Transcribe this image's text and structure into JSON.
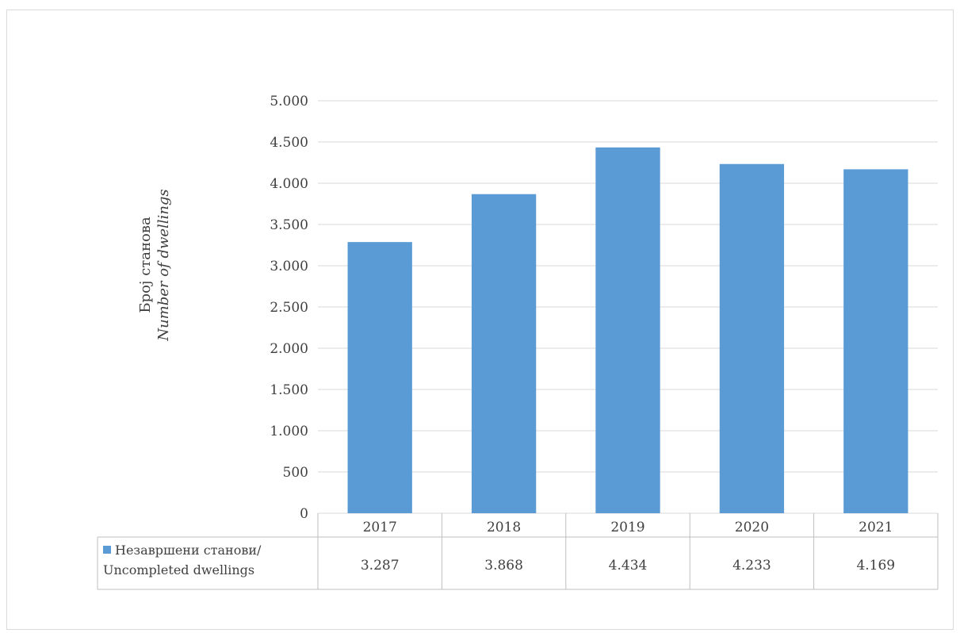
{
  "chart_data": {
    "type": "bar",
    "title": "",
    "ylabel": [
      "Број станова",
      "Number of dwellings"
    ],
    "xlabel": "",
    "categories": [
      "2017",
      "2018",
      "2019",
      "2020",
      "2021"
    ],
    "series": [
      {
        "name": "Незавршени станови/ Uncompleted dwellings",
        "name_lines": [
          "Незавршени станови/",
          "Uncompleted dwellings"
        ],
        "values": [
          3287,
          3868,
          4434,
          4233,
          4169
        ],
        "labels": [
          "3.287",
          "3.868",
          "4.434",
          "4.233",
          "4.169"
        ],
        "color": "#5b9bd5"
      }
    ],
    "ylim": [
      0,
      5000
    ],
    "yticks": [
      0,
      500,
      1000,
      1500,
      2000,
      2500,
      3000,
      3500,
      4000,
      4500,
      5000
    ],
    "ytick_labels": [
      "0",
      "500",
      "1.000",
      "1.500",
      "2.000",
      "2.500",
      "3.000",
      "3.500",
      "4.000",
      "4.500",
      "5.000"
    ],
    "grid": true,
    "legend": "data-table",
    "gridline_color": "#d9d9d9"
  }
}
